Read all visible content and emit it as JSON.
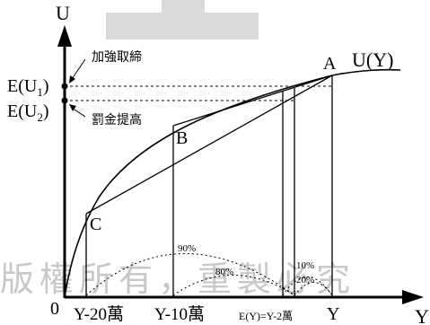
{
  "axes": {
    "y_label": "U",
    "x_label": "Y",
    "origin_label": "0",
    "curve_label": "U(Y)"
  },
  "points": {
    "A": "A",
    "B": "B",
    "C": "C"
  },
  "expected_utility": {
    "u1_base": "E(U",
    "u1_sub": "1",
    "u1_close": ")",
    "u2_base": "E(U",
    "u2_sub": "2",
    "u2_close": ")"
  },
  "annotations": {
    "increase_enforcement": "加強取締",
    "raise_fine": "罰金提高"
  },
  "x_ticks": {
    "y_minus_20": "Y-20萬",
    "y_minus_10": "Y-10萬",
    "expected_y": "E(Y)=Y-2萬",
    "y": "Y"
  },
  "probabilities": {
    "p90": "90%",
    "p80": "80%",
    "p10": "10%",
    "p20": "20%"
  },
  "watermark": "版權所有，重製必究",
  "colors": {
    "ink": "#000000",
    "watermark": "#c8c8c8",
    "header_bar": "#d9d9d9"
  }
}
